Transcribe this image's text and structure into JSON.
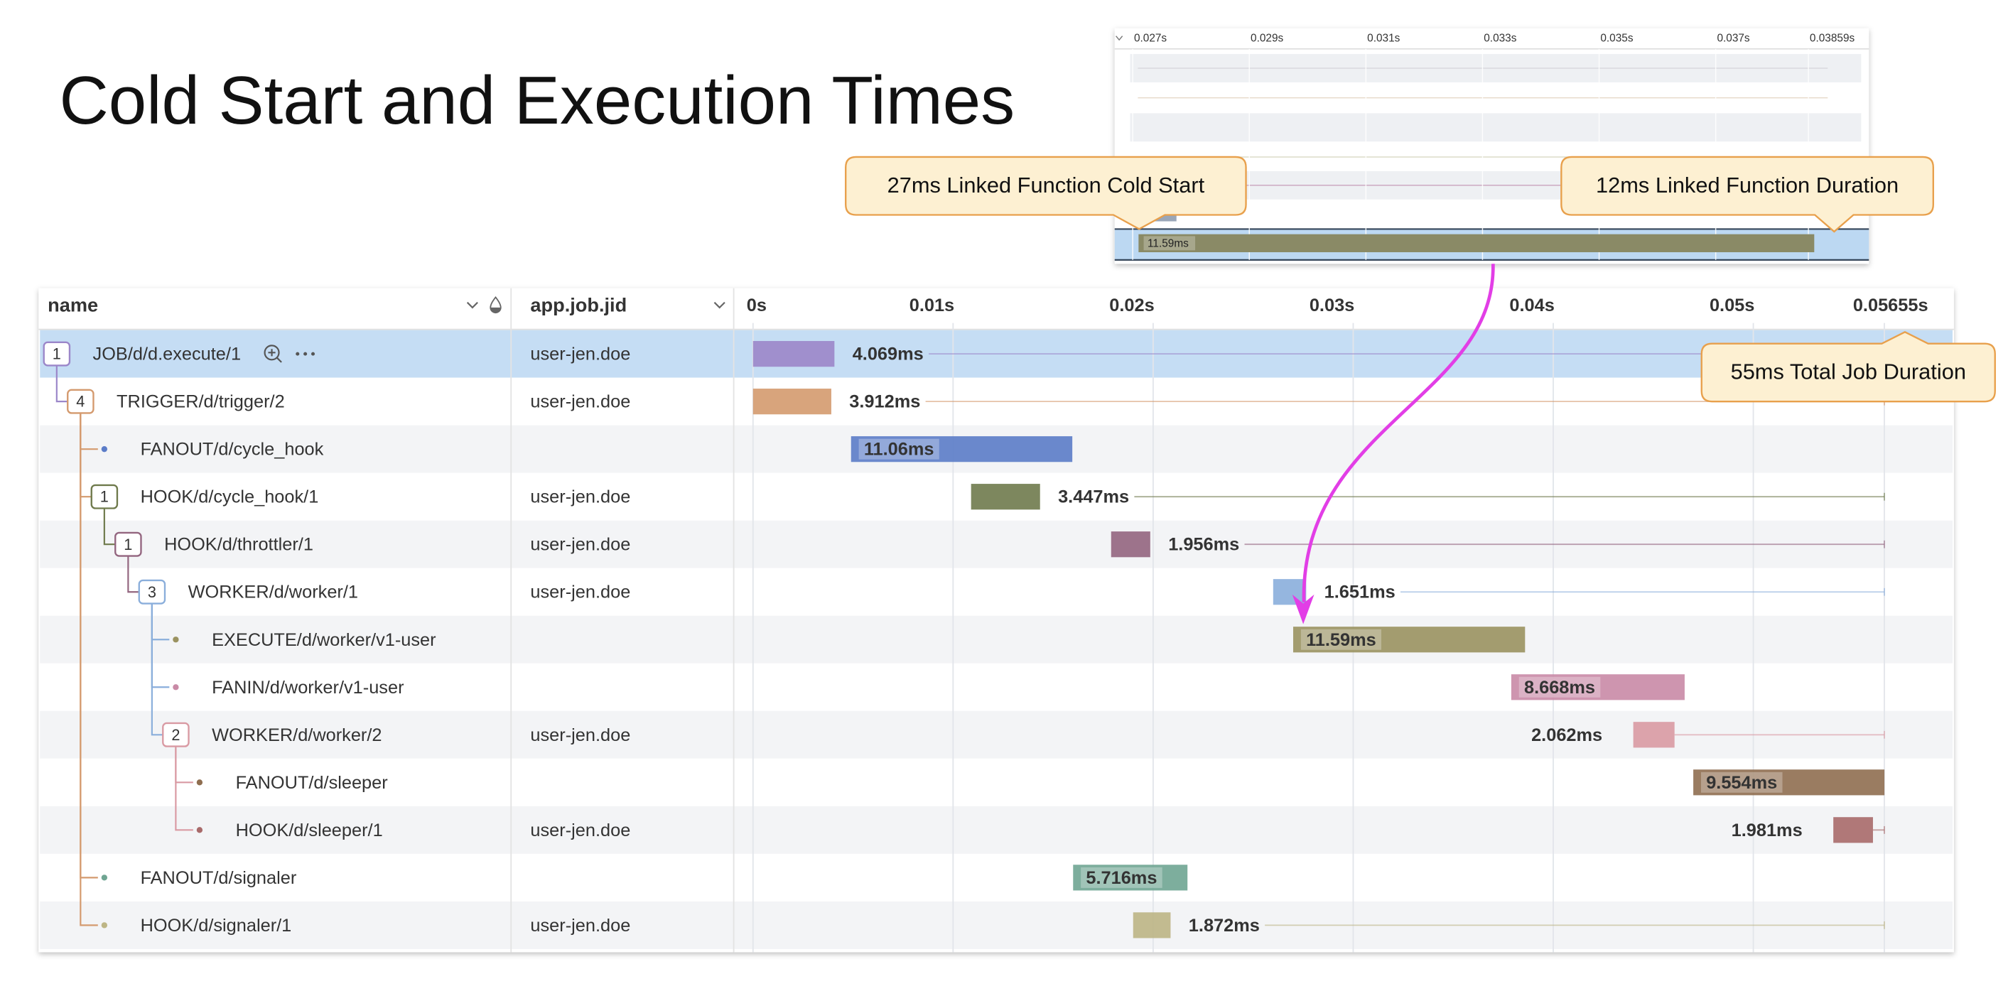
{
  "title": "Cold Start and Execution Times",
  "callouts": [
    "27ms Linked Function Cold Start",
    "12ms Linked Function Duration",
    "55ms Total Job Duration"
  ],
  "overview": {
    "xlim": [
      0.027,
      0.03859
    ],
    "xticks": [
      {
        "value": 0.027,
        "label": "0.027s"
      },
      {
        "value": 0.029,
        "label": "0.029s"
      },
      {
        "value": 0.031,
        "label": "0.031s"
      },
      {
        "value": 0.033,
        "label": "0.033s"
      },
      {
        "value": 0.035,
        "label": "0.035s"
      },
      {
        "value": 0.037,
        "label": "0.037s"
      },
      {
        "value": 0.03859,
        "label": "0.03859s"
      }
    ],
    "span": {
      "start": 0.0271,
      "duration": 0.01159,
      "duration_label": "11.59ms",
      "color": "#8a8a66"
    }
  },
  "table": {
    "columns": [
      "name",
      "app.job.jid"
    ],
    "xlim": [
      0,
      0.05655
    ],
    "xticks": [
      {
        "value": 0,
        "label": "0s"
      },
      {
        "value": 0.01,
        "label": "0.01s"
      },
      {
        "value": 0.02,
        "label": "0.02s"
      },
      {
        "value": 0.03,
        "label": "0.03s"
      },
      {
        "value": 0.04,
        "label": "0.04s"
      },
      {
        "value": 0.05,
        "label": "0.05s"
      },
      {
        "value": 0.05655,
        "label": "0.05655s"
      }
    ],
    "rows": [
      {
        "name": "JOB/d/d.execute/1",
        "jid": "user-jen.doe",
        "count": 1,
        "selected": true,
        "color": "#9b86c9",
        "start": 0,
        "duration": 0.004069,
        "duration_label": "4.069ms",
        "label_position": "right",
        "children": [
          {
            "name": "TRIGGER/d/trigger/2",
            "jid": "user-jen.doe",
            "count": 4,
            "color": "#d49a6e",
            "start": 0,
            "duration": 0.003912,
            "duration_label": "3.912ms",
            "label_position": "right",
            "children": [
              {
                "name": "FANOUT/d/cycle_hook",
                "color": "#5b7cc8",
                "start": 0.0049,
                "duration": 0.01106,
                "duration_label": "11.06ms",
                "label_position": "inside"
              },
              {
                "name": "HOOK/d/cycle_hook/1",
                "jid": "user-jen.doe",
                "count": 1,
                "color": "#6f7a4c",
                "start": 0.0109,
                "duration": 0.003447,
                "duration_label": "3.447ms",
                "label_position": "right",
                "children": [
                  {
                    "name": "HOOK/d/throttler/1",
                    "jid": "user-jen.doe",
                    "count": 1,
                    "color": "#93657f",
                    "start": 0.0179,
                    "duration": 0.001956,
                    "duration_label": "1.956ms",
                    "label_position": "right",
                    "children": [
                      {
                        "name": "WORKER/d/worker/1",
                        "jid": "user-jen.doe",
                        "count": 3,
                        "color": "#8aaedb",
                        "start": 0.026,
                        "duration": 0.001651,
                        "duration_label": "1.651ms",
                        "label_position": "right",
                        "children": [
                          {
                            "name": "EXECUTE/d/worker/v1-user",
                            "color": "#9a9260",
                            "start": 0.027,
                            "duration": 0.01159,
                            "duration_label": "11.59ms",
                            "label_position": "inside"
                          },
                          {
                            "name": "FANIN/d/worker/v1-user",
                            "color": "#c98aa6",
                            "start": 0.0379,
                            "duration": 0.008668,
                            "duration_label": "8.668ms",
                            "label_position": "inside"
                          },
                          {
                            "name": "WORKER/d/worker/2",
                            "jid": "user-jen.doe",
                            "count": 2,
                            "color": "#d99aa3",
                            "start": 0.044,
                            "duration": 0.002062,
                            "duration_label": "2.062ms",
                            "label_position": "left",
                            "children": [
                              {
                                "name": "FANOUT/d/sleeper",
                                "color": "#8f6e50",
                                "start": 0.047,
                                "duration": 0.009554,
                                "duration_label": "9.554ms",
                                "label_position": "inside"
                              },
                              {
                                "name": "HOOK/d/sleeper/1",
                                "jid": "user-jen.doe",
                                "color": "#a86a6a",
                                "start": 0.054,
                                "duration": 0.001981,
                                "duration_label": "1.981ms",
                                "label_position": "left"
                              }
                            ]
                          }
                        ]
                      }
                    ]
                  }
                ]
              },
              {
                "name": "FANOUT/d/signaler",
                "color": "#6fa592",
                "start": 0.016,
                "duration": 0.005716,
                "duration_label": "5.716ms",
                "label_position": "inside"
              },
              {
                "name": "HOOK/d/signaler/1",
                "jid": "user-jen.doe",
                "color": "#bdb585",
                "start": 0.019,
                "duration": 0.001872,
                "duration_label": "1.872ms",
                "label_position": "right"
              }
            ]
          }
        ]
      }
    ]
  }
}
